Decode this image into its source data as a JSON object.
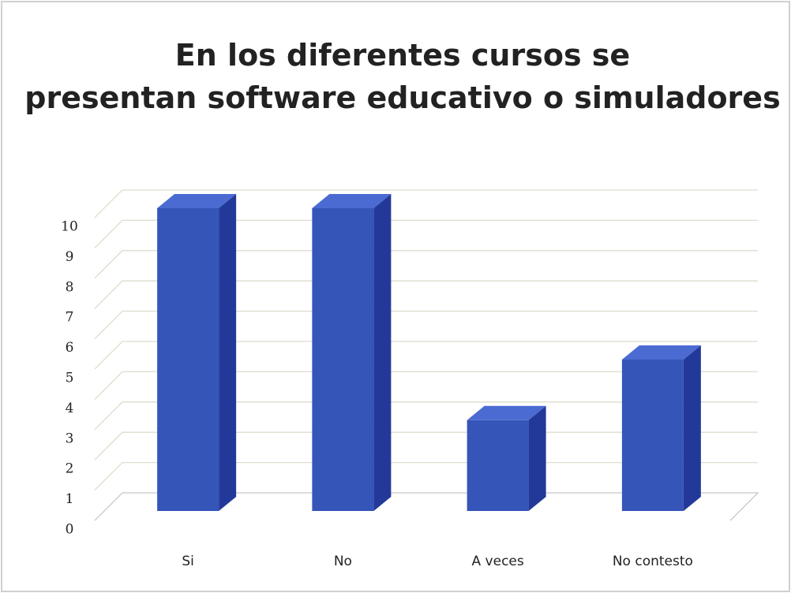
{
  "chart_data": {
    "type": "bar3d",
    "title": "En los diferentes cursos se presentan software educativo o simuladores",
    "categories": [
      "Si",
      "No",
      "A veces",
      "No contesto"
    ],
    "values": [
      10,
      10,
      3,
      5
    ],
    "color": "#3555b9",
    "ylim": [
      0,
      10
    ],
    "yticks": [
      0,
      1,
      2,
      3,
      4,
      5,
      6,
      7,
      8,
      9,
      10
    ],
    "grid": true
  }
}
